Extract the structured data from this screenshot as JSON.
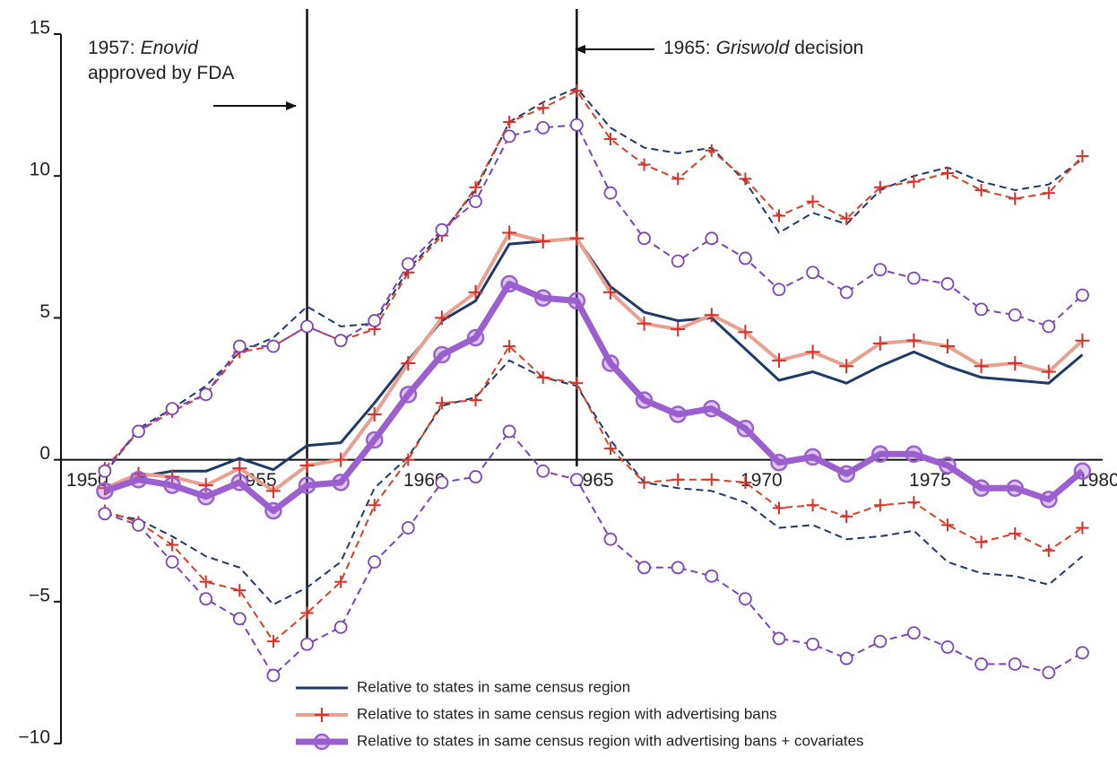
{
  "chart_data": {
    "type": "line",
    "x": [
      1951,
      1952,
      1953,
      1954,
      1955,
      1956,
      1957,
      1958,
      1959,
      1960,
      1961,
      1962,
      1963,
      1964,
      1965,
      1966,
      1967,
      1968,
      1969,
      1970,
      1971,
      1972,
      1973,
      1974,
      1975,
      1976,
      1977,
      1978,
      1979,
      1980
    ],
    "xlim": [
      1949.7,
      1980.6
    ],
    "xticks": [
      1950,
      1955,
      1960,
      1965,
      1970,
      1975,
      1980
    ],
    "ylim": [
      -10,
      15
    ],
    "yticks": [
      {
        "value": -10,
        "label": "−10"
      },
      {
        "value": -5,
        "label": "−5"
      },
      0,
      5,
      10,
      15
    ],
    "series": [
      {
        "name": "Relative to states in same census region",
        "color": "#1f3a68",
        "band_color": "#1f3a68",
        "marker": "none",
        "values": [
          -1.2,
          -0.6,
          -0.4,
          -0.4,
          0.05,
          -0.35,
          0.5,
          0.6,
          2.0,
          3.5,
          4.9,
          5.6,
          7.6,
          7.7,
          7.8,
          6.1,
          5.2,
          4.9,
          5.0,
          3.9,
          2.8,
          3.1,
          2.7,
          3.3,
          3.8,
          3.3,
          2.9,
          2.8,
          2.7,
          3.7
        ],
        "upper": [
          -0.5,
          1.1,
          1.8,
          2.6,
          3.8,
          4.3,
          5.4,
          4.7,
          4.8,
          6.7,
          8.0,
          9.5,
          11.9,
          12.6,
          13.1,
          11.7,
          11.0,
          10.8,
          11.0,
          9.8,
          8.0,
          8.7,
          8.3,
          9.5,
          10.0,
          10.3,
          9.8,
          9.5,
          9.7,
          10.6
        ],
        "lower": [
          -1.9,
          -2.1,
          -2.7,
          -3.4,
          -3.8,
          -5.1,
          -4.5,
          -3.6,
          -1.0,
          0.1,
          1.9,
          2.2,
          3.5,
          2.9,
          2.6,
          0.7,
          -0.8,
          -1.0,
          -1.1,
          -1.5,
          -2.4,
          -2.3,
          -2.8,
          -2.7,
          -2.5,
          -3.6,
          -4.0,
          -4.1,
          -4.4,
          -3.4
        ]
      },
      {
        "name": "Relative to states in same census region with advertising bans",
        "color": "#e8a090",
        "band_color": "#d8402a",
        "marker": "plus",
        "values": [
          -1.0,
          -0.5,
          -0.6,
          -0.9,
          -0.3,
          -1.1,
          -0.2,
          0.0,
          1.6,
          3.4,
          5.0,
          5.9,
          8.0,
          7.7,
          7.8,
          5.9,
          4.8,
          4.6,
          5.1,
          4.5,
          3.5,
          3.8,
          3.3,
          4.1,
          4.2,
          4.0,
          3.3,
          3.4,
          3.1,
          4.2
        ],
        "upper": [
          -0.3,
          1.0,
          1.7,
          2.3,
          3.8,
          4.0,
          4.7,
          4.2,
          4.6,
          6.6,
          7.9,
          9.6,
          11.9,
          12.4,
          13.0,
          11.3,
          10.4,
          9.9,
          10.9,
          9.9,
          8.6,
          9.1,
          8.5,
          9.6,
          9.8,
          10.1,
          9.5,
          9.2,
          9.4,
          10.7
        ],
        "lower": [
          -1.8,
          -2.2,
          -3.0,
          -4.3,
          -4.6,
          -6.4,
          -5.4,
          -4.3,
          -1.6,
          0.0,
          2.0,
          2.1,
          4.0,
          2.9,
          2.7,
          0.4,
          -0.8,
          -0.7,
          -0.7,
          -0.8,
          -1.7,
          -1.6,
          -2.0,
          -1.6,
          -1.5,
          -2.3,
          -2.9,
          -2.6,
          -3.2,
          -2.4
        ]
      },
      {
        "name": "Relative to states in same census region with advertising bans + covariates",
        "color": "#9b5fcf",
        "band_color": "#7b45b8",
        "marker": "circle",
        "values": [
          -1.1,
          -0.7,
          -0.9,
          -1.3,
          -0.8,
          -1.8,
          -0.9,
          -0.8,
          0.7,
          2.3,
          3.7,
          4.3,
          6.2,
          5.7,
          5.6,
          3.4,
          2.1,
          1.6,
          1.8,
          1.1,
          -0.1,
          0.1,
          -0.5,
          0.2,
          0.2,
          -0.2,
          -1.0,
          -1.0,
          -1.4,
          -0.4
        ],
        "upper": [
          -0.4,
          1.0,
          1.8,
          2.3,
          4.0,
          4.0,
          4.7,
          4.2,
          4.9,
          6.9,
          8.1,
          9.1,
          11.4,
          11.7,
          11.8,
          9.4,
          7.8,
          7.0,
          7.8,
          7.1,
          6.0,
          6.6,
          5.9,
          6.7,
          6.4,
          6.2,
          5.3,
          5.1,
          4.7,
          5.8
        ],
        "lower": [
          -1.9,
          -2.3,
          -3.6,
          -4.9,
          -5.6,
          -7.6,
          -6.5,
          -5.9,
          -3.6,
          -2.4,
          -0.8,
          -0.6,
          1.0,
          -0.4,
          -0.7,
          -2.8,
          -3.8,
          -3.8,
          -4.1,
          -4.9,
          -6.3,
          -6.5,
          -7.0,
          -6.4,
          -6.1,
          -6.6,
          -7.2,
          -7.2,
          -7.5,
          -6.8
        ]
      }
    ],
    "annotations": [
      {
        "x": 1957,
        "prefix": "1957:",
        "italic": "Enovid",
        "suffix": "approved by FDA"
      },
      {
        "x": 1965,
        "prefix": "1965:",
        "italic": "Griswold",
        "suffix": "decision"
      }
    ]
  }
}
